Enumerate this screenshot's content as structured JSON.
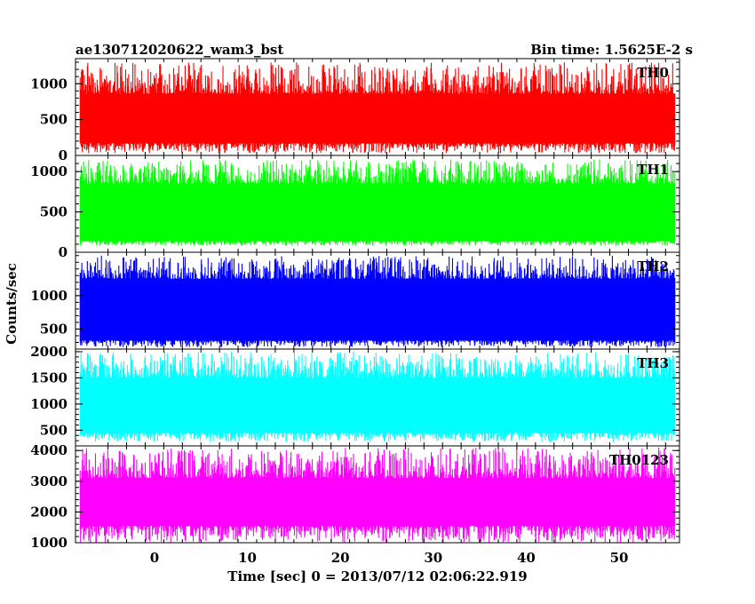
{
  "chart_data": {
    "type": "line",
    "title_left": "ae130712020622_wam3_bst",
    "title_right": "Bin time: 1.5625E-2 s",
    "xlabel": "Time [sec] 0 = 2013/07/12 02:06:22.919",
    "ylabel": "Counts/sec",
    "xlim": [
      -8.5,
      56.5
    ],
    "x_data_range": [
      -8.0,
      56.0
    ],
    "x_ticks": [
      0,
      10,
      20,
      30,
      40,
      50
    ],
    "x_tick_labels": [
      "0",
      "10",
      "20",
      "30",
      "40",
      "50"
    ],
    "panels": [
      {
        "name": "TH0",
        "color": "#ff0000",
        "ylim": [
          0,
          1350
        ],
        "y_ticks": [
          0,
          500,
          1000
        ],
        "y_tick_labels": [
          "0",
          "500",
          "1000"
        ],
        "band_low": 170,
        "band_high": 860,
        "min": 30,
        "max": 1300
      },
      {
        "name": "TH1",
        "color": "#00ff00",
        "ylim": [
          0,
          1200
        ],
        "y_ticks": [
          0,
          500,
          1000
        ],
        "y_tick_labels": [
          "0",
          "500",
          "1000"
        ],
        "band_low": 140,
        "band_high": 850,
        "min": 80,
        "max": 1150
      },
      {
        "name": "TH2",
        "color": "#0000ff",
        "ylim": [
          200,
          1650
        ],
        "y_ticks": [
          500,
          1000
        ],
        "y_tick_labels": [
          "500",
          "1000"
        ],
        "band_low": 330,
        "band_high": 1250,
        "min": 230,
        "max": 1600
      },
      {
        "name": "TH3",
        "color": "#00ffff",
        "ylim": [
          200,
          2050
        ],
        "y_ticks": [
          500,
          1000,
          1500,
          2000
        ],
        "y_tick_labels": [
          "500",
          "1000",
          "1500",
          "2000"
        ],
        "band_low": 450,
        "band_high": 1500,
        "min": 280,
        "max": 2000
      },
      {
        "name": "TH0123",
        "color": "#ff00ff",
        "ylim": [
          1000,
          4150
        ],
        "y_ticks": [
          1000,
          2000,
          3000,
          4000
        ],
        "y_tick_labels": [
          "1000",
          "2000",
          "3000",
          "4000"
        ],
        "band_low": 1550,
        "band_high": 3100,
        "min": 1000,
        "max": 4100
      }
    ]
  }
}
